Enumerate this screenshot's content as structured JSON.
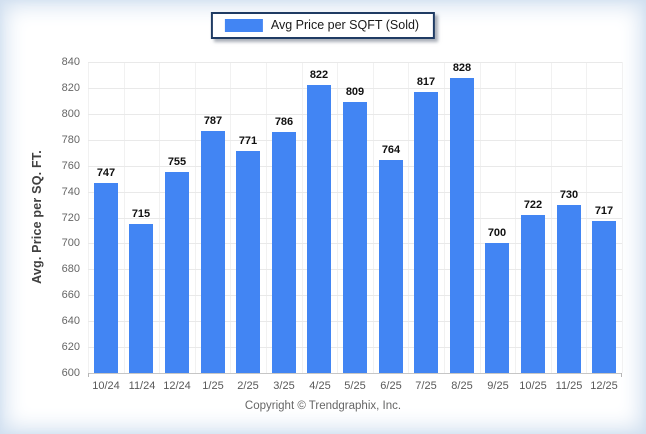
{
  "legend": {
    "label": "Avg Price per SQFT (Sold)"
  },
  "footer": {
    "copyright": "Copyright © Trendgraphix, Inc."
  },
  "chart_data": {
    "type": "bar",
    "title": "",
    "xlabel": "",
    "ylabel": "Avg. Price per SQ. FT.",
    "categories": [
      "10/24",
      "11/24",
      "12/24",
      "1/25",
      "2/25",
      "3/25",
      "4/25",
      "5/25",
      "6/25",
      "7/25",
      "8/25",
      "9/25",
      "10/25",
      "11/25",
      "12/25"
    ],
    "series": [
      {
        "name": "Avg Price per SQFT (Sold)",
        "values": [
          747,
          715,
          755,
          787,
          771,
          786,
          822,
          809,
          764,
          817,
          828,
          700,
          722,
          730,
          717
        ]
      }
    ],
    "ylim": [
      600,
      840
    ],
    "ytick_step": 20,
    "grid": true,
    "legend_position": "top-center",
    "data_labels": true,
    "colors": {
      "bar": "#4285f3",
      "legend_border": "#1f3b63",
      "grid_line": "#e9e9e9",
      "axis_line": "#c6c6c6",
      "tick_label": "#666666",
      "data_label": "#111111",
      "edge_vignette": "#cfdeef"
    }
  }
}
